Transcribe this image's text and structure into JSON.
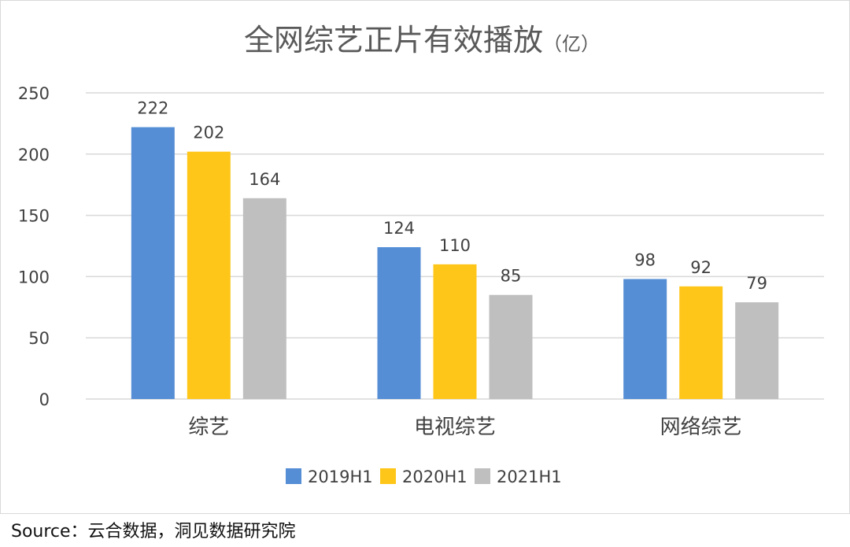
{
  "chart_data": {
    "type": "bar",
    "title": "全网综艺正片有效播放",
    "title_unit": "（亿）",
    "categories": [
      "综艺",
      "电视综艺",
      "网络综艺"
    ],
    "series": [
      {
        "name": "2019H1",
        "values": [
          222,
          124,
          98
        ],
        "color": "#558ED5"
      },
      {
        "name": "2020H1",
        "values": [
          202,
          110,
          92
        ],
        "color": "#FFC61A"
      },
      {
        "name": "2021H1",
        "values": [
          164,
          85,
          79
        ],
        "color": "#BFBFBF"
      }
    ],
    "ylim": [
      0,
      250
    ],
    "yticks": [
      0,
      50,
      100,
      150,
      200,
      250
    ],
    "grid": true,
    "legend": "bottom",
    "data_labels": true
  },
  "source": "Source：云合数据，洞见数据研究院"
}
